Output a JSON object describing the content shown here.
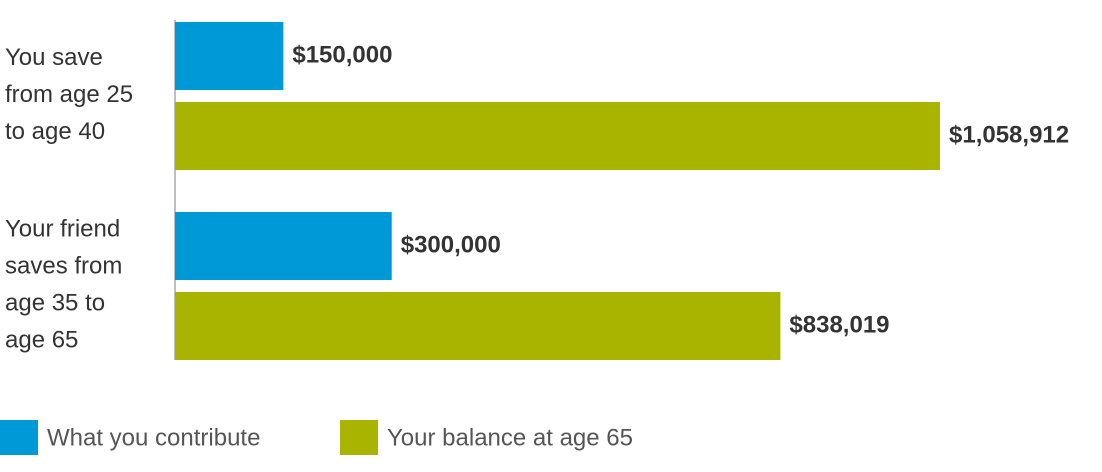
{
  "chart_data": {
    "type": "bar",
    "orientation": "horizontal",
    "categories": [
      "You save from age 25 to age 40",
      "Your friend saves from age 35 to age 65"
    ],
    "series": [
      {
        "name": "What you contribute",
        "color": "#0099d8",
        "values": [
          150000,
          300000
        ],
        "value_labels": [
          "$150,000",
          "$300,000"
        ]
      },
      {
        "name": "Your balance at age 65",
        "color": "#a8b400",
        "values": [
          1058912,
          838019
        ],
        "value_labels": [
          "$1,058,912",
          "$838,019"
        ]
      }
    ],
    "legend": "bottom-left"
  }
}
